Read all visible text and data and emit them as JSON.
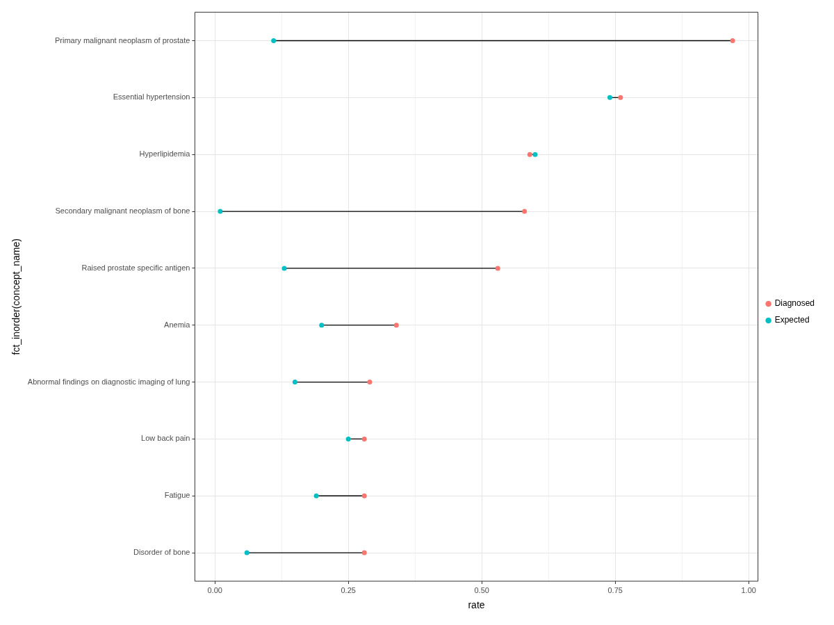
{
  "chart_data": {
    "type": "scatter",
    "orientation": "horizontal",
    "xlabel": "rate",
    "ylabel": "fct_inorder(concept_name)",
    "categories": [
      "Primary malignant neoplasm of prostate",
      "Essential hypertension",
      "Hyperlipidemia",
      "Secondary malignant neoplasm of bone",
      "Raised prostate specific antigen",
      "Anemia",
      "Abnormal findings on diagnostic imaging of lung",
      "Low back pain",
      "Fatigue",
      "Disorder of bone"
    ],
    "series": [
      {
        "name": "Diagnosed",
        "color": "#f8766d",
        "values": [
          0.97,
          0.76,
          0.59,
          0.58,
          0.53,
          0.34,
          0.29,
          0.28,
          0.28,
          0.28
        ]
      },
      {
        "name": "Expected",
        "color": "#00bfc4",
        "values": [
          0.11,
          0.74,
          0.6,
          0.01,
          0.13,
          0.2,
          0.15,
          0.25,
          0.19,
          0.06
        ]
      }
    ],
    "xlim": [
      -0.0375,
      1.0175
    ],
    "xticks": [
      {
        "value": 0,
        "label": "0.00"
      },
      {
        "value": 0.125,
        "label": null
      },
      {
        "value": 0.25,
        "label": "0.25"
      },
      {
        "value": 0.375,
        "label": null
      },
      {
        "value": 0.5,
        "label": "0.50"
      },
      {
        "value": 0.625,
        "label": null
      },
      {
        "value": 0.75,
        "label": "0.75"
      },
      {
        "value": 0.875,
        "label": null
      },
      {
        "value": 1,
        "label": "1.00"
      }
    ],
    "grid": true,
    "legend": "right",
    "marker": "circle"
  }
}
